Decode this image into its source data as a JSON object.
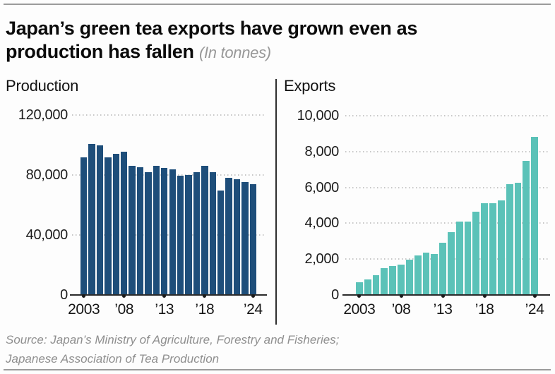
{
  "title": {
    "line1": "Japan’s green tea exports have grown even as",
    "line2": "production has fallen",
    "unit_note": "(In tonnes)"
  },
  "source": {
    "line1": "Source: Japan’s Ministry of Agriculture, Forestry and Fisheries;",
    "line2": "Japanese Association of Tea Production"
  },
  "colors": {
    "production_bar": "#1e4e7a",
    "exports_bar": "#5bc2b8",
    "gridline": "#c7c7c7",
    "axis": "#2b2b2b",
    "text": "#121212",
    "muted_text": "#8f8f8f",
    "rule": "#9b9b9b"
  },
  "chart_data": [
    {
      "type": "bar",
      "title": "Production",
      "x": [
        2003,
        2004,
        2005,
        2006,
        2007,
        2008,
        2009,
        2010,
        2011,
        2012,
        2013,
        2014,
        2015,
        2016,
        2017,
        2018,
        2019,
        2020,
        2021,
        2022,
        2023,
        2024
      ],
      "values": [
        91900,
        100700,
        100000,
        91800,
        94100,
        95500,
        86000,
        85000,
        82100,
        85900,
        84800,
        83600,
        79500,
        80200,
        82000,
        86300,
        81700,
        69800,
        78100,
        77200,
        75200,
        73700
      ],
      "ylim": [
        0,
        120000
      ],
      "grid": "dotted-horizontal",
      "legend": "none",
      "bar_color": "#1e4e7a",
      "yticks": [
        {
          "value": 0,
          "label": "0"
        },
        {
          "value": 40000,
          "label": "40,000"
        },
        {
          "value": 80000,
          "label": "80,000"
        },
        {
          "value": 120000,
          "label": "120,000"
        }
      ],
      "xticks": [
        {
          "year": 2003,
          "label": "2003"
        },
        {
          "year": 2008,
          "label": "’08"
        },
        {
          "year": 2013,
          "label": "’13"
        },
        {
          "year": 2018,
          "label": "’18"
        },
        {
          "year": 2024,
          "label": "’24"
        }
      ]
    },
    {
      "type": "bar",
      "title": "Exports",
      "x": [
        2003,
        2004,
        2005,
        2006,
        2007,
        2008,
        2009,
        2010,
        2011,
        2012,
        2013,
        2014,
        2015,
        2016,
        2017,
        2018,
        2019,
        2020,
        2021,
        2022,
        2023,
        2024
      ],
      "values": [
        700,
        850,
        1100,
        1500,
        1600,
        1700,
        1950,
        2200,
        2350,
        2300,
        2900,
        3500,
        4100,
        4100,
        4650,
        5100,
        5100,
        5270,
        6180,
        6270,
        7500,
        8800
      ],
      "ylim": [
        0,
        10000
      ],
      "grid": "dotted-horizontal",
      "legend": "none",
      "bar_color": "#5bc2b8",
      "yticks": [
        {
          "value": 0,
          "label": "0"
        },
        {
          "value": 2000,
          "label": "2,000"
        },
        {
          "value": 4000,
          "label": "4,000"
        },
        {
          "value": 6000,
          "label": "6,000"
        },
        {
          "value": 8000,
          "label": "8,000"
        },
        {
          "value": 10000,
          "label": "10,000"
        }
      ],
      "xticks": [
        {
          "year": 2003,
          "label": "2003"
        },
        {
          "year": 2008,
          "label": "’08"
        },
        {
          "year": 2013,
          "label": "’13"
        },
        {
          "year": 2018,
          "label": "’18"
        },
        {
          "year": 2024,
          "label": "’24"
        }
      ]
    }
  ]
}
